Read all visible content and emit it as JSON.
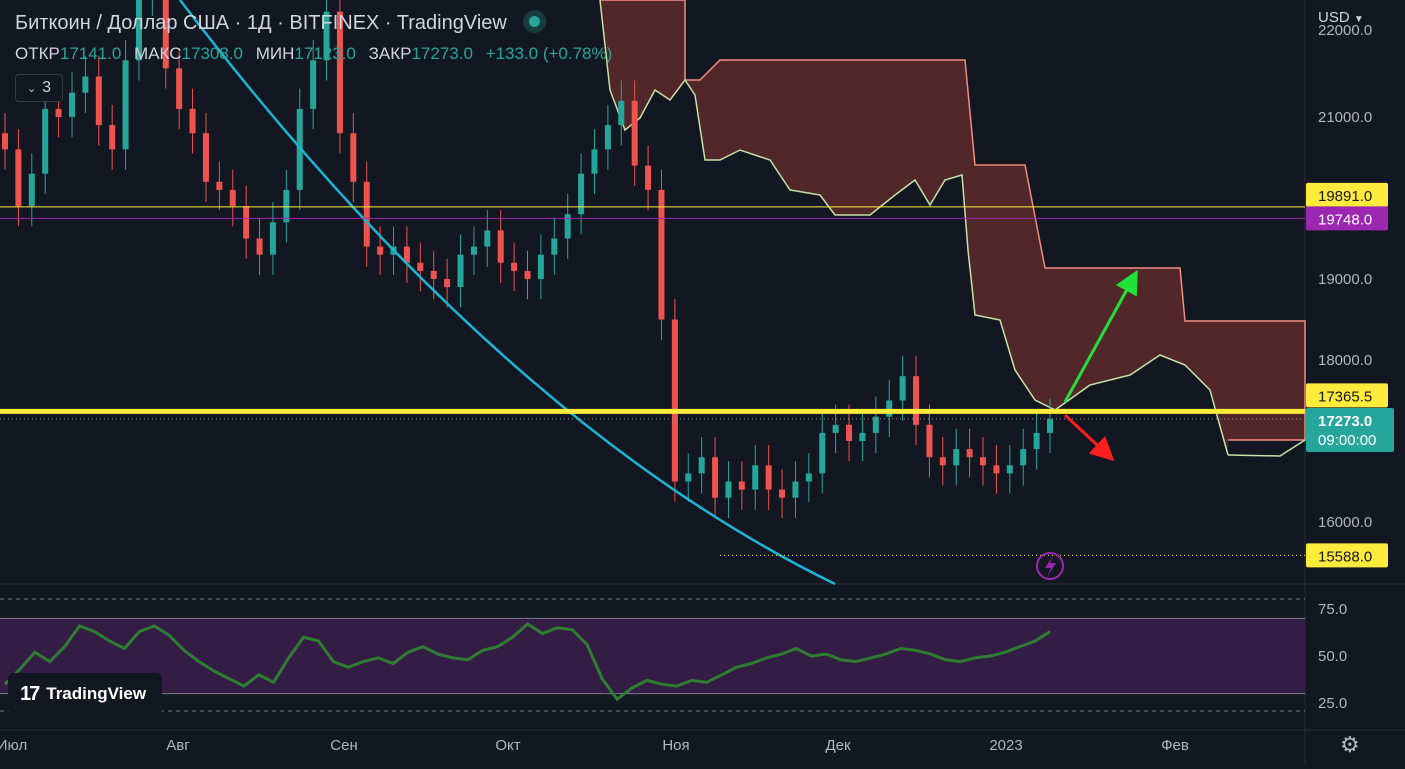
{
  "header": {
    "title": "Биткоин / Доллар США · 1Д · BITFINEX · TradingView",
    "ohlc": [
      {
        "key": "ОТКР",
        "value": "17141.0"
      },
      {
        "key": "МАКС",
        "value": "17308.0"
      },
      {
        "key": "МИН",
        "value": "17123.0"
      },
      {
        "key": "ЗАКР",
        "value": "17273.0"
      },
      {
        "key": "",
        "value": "+133.0 (+0.78%)"
      }
    ],
    "indicators_count": "3"
  },
  "currency": "USD",
  "logo_text": "TradingView",
  "colors": {
    "bg": "#131722",
    "up": "#26a69a",
    "down": "#ef5350",
    "ma": "#1cb5d4",
    "rsi": "#2e7d32",
    "level": "#ffeb3b",
    "purple": "#9c27b0",
    "cloud": "#5d2a2a"
  },
  "chart_data": [
    {
      "type": "candlestick",
      "symbol": "BTCUSD",
      "exchange": "BITFINEX",
      "interval": "1Д",
      "price_ticks": [
        "22000.0",
        "21000.0",
        "19000.0",
        "18000.0",
        "16000.0"
      ],
      "x_ticks": [
        "Июл",
        "Авг",
        "Сен",
        "Окт",
        "Ноя",
        "Дек",
        "2023",
        "Фев"
      ],
      "series": {
        "close_approx": [
          20600,
          19900,
          20300,
          21100,
          21000,
          21300,
          21500,
          20900,
          20600,
          21700,
          22500,
          22900,
          21600,
          21100,
          20800,
          20200,
          20100,
          19900,
          19500,
          19300,
          19700,
          20100,
          21100,
          21700,
          22300,
          20800,
          20200,
          19400,
          19300,
          19400,
          19200,
          19100,
          19000,
          18900,
          19300,
          19400,
          19600,
          19200,
          19100,
          19000,
          19300,
          19500,
          19800,
          20300,
          20600,
          20900,
          21200,
          20400,
          20100,
          18500,
          16500,
          16600,
          16800,
          16300,
          16500,
          16400,
          16700,
          16400,
          16300,
          16500,
          16600,
          17100,
          17200,
          17000,
          17100,
          17300,
          17500,
          17800,
          17200,
          16800,
          16700,
          16900,
          16800,
          16700,
          16600,
          16700,
          16900,
          17100,
          17273
        ],
        "horizontal_levels": [
          19891.0,
          19748.0,
          17365.5,
          15588.0
        ],
        "last_price": 17273.0,
        "last_time": "09:00:00"
      }
    },
    {
      "type": "line",
      "name": "RSI",
      "ticks": [
        "75.0",
        "50.0",
        "25.0"
      ],
      "band": [
        30,
        70
      ],
      "values": [
        35,
        43,
        52,
        47,
        55,
        66,
        63,
        58,
        54,
        63,
        66,
        61,
        53,
        47,
        42,
        38,
        34,
        40,
        36,
        49,
        60,
        58,
        47,
        44,
        47,
        49,
        46,
        52,
        55,
        51,
        49,
        48,
        53,
        55,
        60,
        67,
        62,
        65,
        64,
        56,
        38,
        27,
        33,
        37,
        35,
        34,
        37,
        36,
        40,
        44,
        46,
        49,
        51,
        54,
        50,
        51,
        48,
        47,
        49,
        51,
        54,
        53,
        51,
        48,
        47,
        49,
        50,
        52,
        55,
        58,
        63
      ]
    }
  ]
}
